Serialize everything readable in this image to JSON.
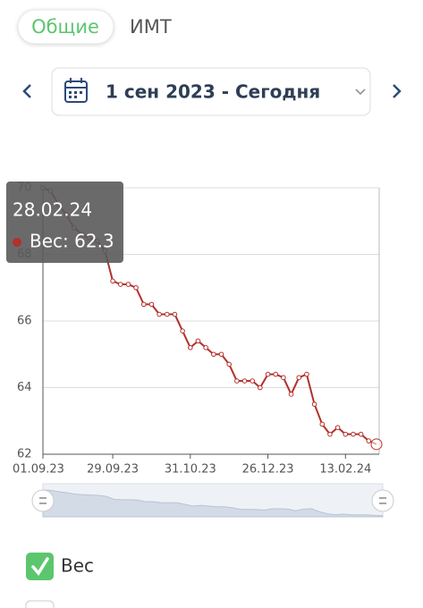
{
  "tabs": [
    "Общие",
    "ИМТ"
  ],
  "date_range": "1 сен 2023 - Сегодня",
  "chart_data": {
    "type": "line",
    "categories": [
      "01.09.23",
      null,
      null,
      null,
      null,
      null,
      null,
      null,
      null,
      "29.09.23",
      null,
      null,
      null,
      null,
      null,
      null,
      null,
      null,
      null,
      "31.10.23",
      null,
      null,
      null,
      null,
      null,
      null,
      null,
      null,
      null,
      "26.12.23",
      null,
      null,
      null,
      null,
      null,
      null,
      null,
      null,
      null,
      "13.02.24",
      null,
      null,
      null,
      "28.02.24"
    ],
    "series": [
      {
        "name": "Вес",
        "color": "#b3302b",
        "values": [
          70.0,
          69.9,
          69.5,
          69.2,
          68.8,
          68.6,
          68.5,
          68.4,
          68.1,
          67.2,
          67.1,
          67.1,
          67.0,
          66.5,
          66.5,
          66.2,
          66.2,
          66.2,
          65.7,
          65.2,
          65.4,
          65.2,
          65.0,
          65.0,
          64.7,
          64.2,
          64.2,
          64.2,
          64.0,
          64.4,
          64.4,
          64.3,
          63.8,
          64.3,
          64.4,
          63.5,
          62.9,
          62.6,
          62.8,
          62.6,
          62.6,
          62.6,
          62.4,
          62.3
        ]
      }
    ],
    "ylim": [
      62,
      70
    ],
    "yticks": [
      62,
      64,
      66,
      68,
      70
    ],
    "grid": true
  },
  "tooltip": {
    "text": "Вес: 62.3"
  }
}
